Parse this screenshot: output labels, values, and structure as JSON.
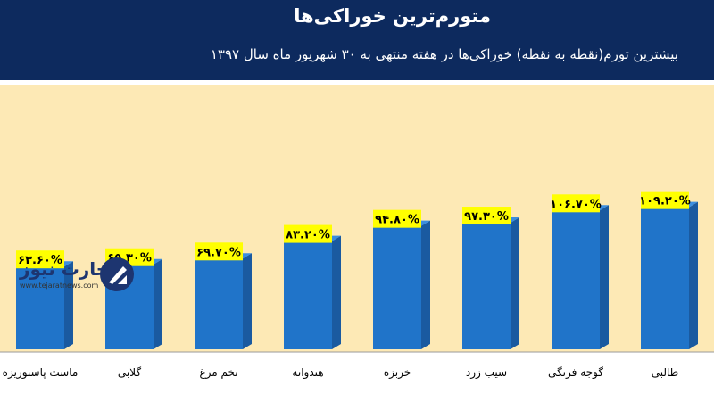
{
  "header": {
    "title": "متورم‌ترین خوراکی‌ها",
    "subtitle": "بیشترین تورم(نقطه به نقطه) خوراکی‌ها در هفته منتهی به ۳۰ شهریور ماه سال ۱۳۹۷"
  },
  "logo": {
    "name": "تجارت نیوز",
    "url": "www.tejaratnews.com"
  },
  "colors": {
    "header_bg": "#0d2a5e",
    "plot_bg": "#fde9b5",
    "bar_front": "#2074c9",
    "bar_side": "#1a5aa0",
    "label_bg": "#ffff00"
  },
  "chart_data": {
    "type": "bar",
    "title": "متورم‌ترین خوراکی‌ها",
    "subtitle": "بیشترین تورم(نقطه به نقطه) خوراکی‌ها در هفته منتهی به ۳۰ شهریور ماه سال ۱۳۹۷",
    "categories": [
      "طالبی",
      "گوجه فرنگی",
      "سیب زرد",
      "خربزه",
      "هندوانه",
      "تخم مرغ",
      "گلابی",
      "ماست پاستوریزه"
    ],
    "values": [
      109.2,
      106.7,
      97.3,
      94.8,
      83.2,
      69.7,
      65.3,
      63.6
    ],
    "data_labels": [
      "۱۰۹.۲۰%",
      "۱۰۶.۷۰%",
      "۹۷.۳۰%",
      "۹۴.۸۰%",
      "۸۳.۲۰%",
      "۶۹.۷۰%",
      "۶۵.۳۰%",
      "۶۳.۶۰%"
    ],
    "xlabel": "",
    "ylabel": "",
    "ylim": [
      0,
      125
    ],
    "grid": false,
    "legend": "none",
    "bar_style": "3d"
  }
}
